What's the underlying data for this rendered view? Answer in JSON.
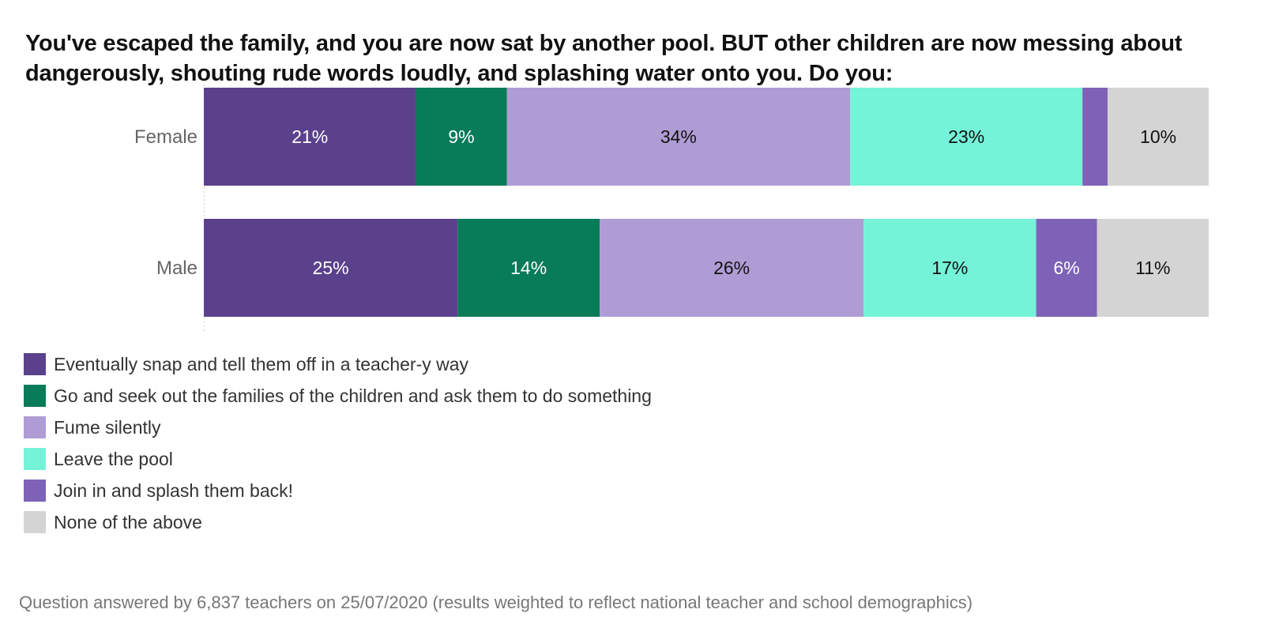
{
  "chart_data": {
    "type": "bar",
    "orientation": "horizontal",
    "stacked": true,
    "title": "You've escaped the family, and you are now sat by another pool. BUT other children are now messing about dangerously, shouting rude words loudly, and splashing water onto you. Do you:",
    "categories": [
      "Female",
      "Male"
    ],
    "series": [
      {
        "name": "Eventually snap and tell them off in a teacher-y way",
        "color": "#5b418c",
        "values": [
          21,
          25
        ],
        "labels": [
          "21%",
          "25%"
        ],
        "label_color": "#ffffff"
      },
      {
        "name": "Go and seek out the families of the children and ask them to do something",
        "color": "#087b57",
        "values": [
          9,
          14
        ],
        "labels": [
          "9%",
          "14%"
        ],
        "label_color": "#ffffff"
      },
      {
        "name": "Fume silently",
        "color": "#af9cd4",
        "values": [
          34,
          26
        ],
        "labels": [
          "34%",
          "26%"
        ],
        "label_color": "#111111"
      },
      {
        "name": "Leave the pool",
        "color": "#75f3d8",
        "values": [
          23,
          17
        ],
        "labels": [
          "23%",
          "17%"
        ],
        "label_color": "#111111"
      },
      {
        "name": "Join in and splash them back!",
        "color": "#7d62b7",
        "values": [
          2.5,
          6
        ],
        "labels": [
          "",
          "6%"
        ],
        "label_color": "#ffffff"
      },
      {
        "name": "None of the above",
        "color": "#d4d4d4",
        "values": [
          10,
          11
        ],
        "labels": [
          "10%",
          "11%"
        ],
        "label_color": "#111111"
      }
    ],
    "legend_position": "bottom-left",
    "grid": false,
    "footnote": "Question answered by 6,837 teachers on 25/07/2020 (results weighted to reflect national teacher and school demographics)"
  }
}
